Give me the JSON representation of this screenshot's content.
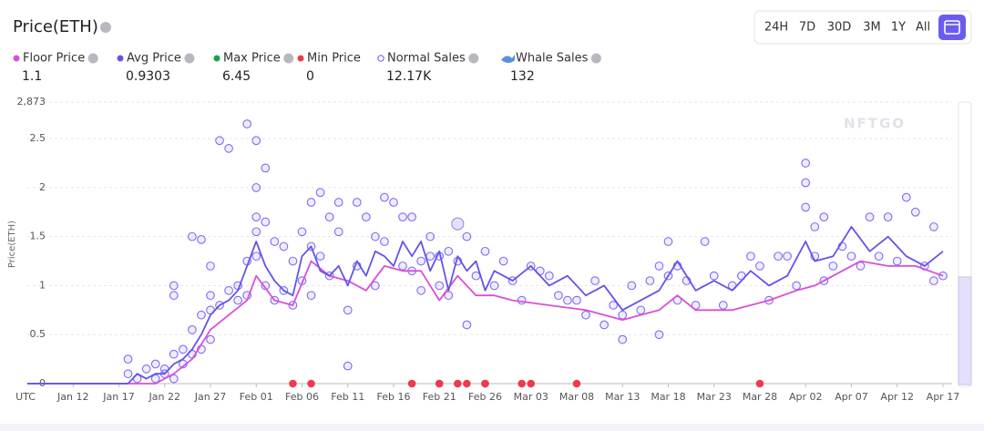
{
  "header": {
    "title": "Price(ETH)",
    "ranges": [
      "24H",
      "7D",
      "30D",
      "3M",
      "1Y",
      "All"
    ]
  },
  "stats": [
    {
      "name": "Floor Price",
      "color": "#d94fd8",
      "value": "1.1"
    },
    {
      "name": "Avg Price",
      "color": "#6354e8",
      "value": "0.9303"
    },
    {
      "name": "Max Price",
      "color": "#16a34a",
      "value": "6.45"
    },
    {
      "name": "Min Price",
      "color": "#f0394a",
      "value": "0"
    },
    {
      "name": "Normal Sales",
      "color": "#7b6cf6",
      "value": "12.17K"
    },
    {
      "name": "Whale Sales",
      "color": "#5b8fd9",
      "value": "132"
    }
  ],
  "chart_data": {
    "type": "line",
    "watermark": "NFTGO",
    "y_label": "Price(ETH)",
    "timezone": "UTC",
    "xlim": [
      "Jan 7",
      "Apr 18"
    ],
    "xticks": [
      "Jan 12",
      "Jan 17",
      "Jan 22",
      "Jan 27",
      "Feb 01",
      "Feb 06",
      "Feb 11",
      "Feb 16",
      "Feb 21",
      "Feb 26",
      "Mar 03",
      "Mar 08",
      "Mar 13",
      "Mar 18",
      "Mar 23",
      "Mar 28",
      "Apr 02",
      "Apr 07",
      "Apr 12",
      "Apr 17"
    ],
    "ylim": [
      0,
      2.873
    ],
    "yticks": [
      0,
      0.5,
      1,
      1.5,
      2,
      2.5,
      {
        "value": 2.873,
        "label": "2,873"
      }
    ],
    "grid": true,
    "series": [
      {
        "kind": "scatter",
        "color": "#7b6cf6",
        "x": [
          "Jan 18",
          "Jan 18",
          "Jan 19",
          "Jan 20",
          "Jan 21",
          "Jan 21",
          "Jan 22",
          "Jan 22",
          "Jan 23",
          "Jan 23",
          "Jan 23",
          "Jan 23",
          "Jan 24",
          "Jan 24",
          "Jan 25",
          "Jan 25",
          "Jan 25",
          "Jan 26",
          "Jan 26",
          "Jan 26",
          "Jan 27",
          "Jan 27",
          "Jan 27",
          "Jan 27",
          "Jan 28",
          "Jan 28",
          "Jan 29",
          "Jan 29",
          "Jan 30",
          "Jan 30",
          "Jan 31",
          "Jan 31",
          "Jan 31",
          "Feb 1",
          "Feb 1",
          "Feb 1",
          "Feb 1",
          "Feb 1",
          "Feb 2",
          "Feb 2",
          "Feb 2",
          "Feb 3",
          "Feb 3",
          "Feb 4",
          "Feb 4",
          "Feb 5",
          "Feb 5",
          "Feb 6",
          "Feb 6",
          "Feb 7",
          "Feb 7",
          "Feb 7",
          "Feb 8",
          "Feb 8",
          "Feb 9",
          "Feb 9",
          "Feb 10",
          "Feb 10",
          "Feb 11",
          "Feb 11",
          "Feb 12",
          "Feb 12",
          "Feb 13",
          "Feb 14",
          "Feb 14",
          "Feb 15",
          "Feb 15",
          "Feb 16",
          "Feb 17",
          "Feb 17",
          "Feb 18",
          "Feb 18",
          "Feb 19",
          "Feb 19",
          "Feb 20",
          "Feb 20",
          "Feb 21",
          "Feb 21",
          "Feb 22",
          "Feb 22",
          "Feb 23",
          "Feb 24",
          "Feb 24",
          "Feb 25",
          "Feb 26",
          "Feb 27",
          "Feb 28",
          "Mar 1",
          "Mar 2",
          "Mar 3",
          "Mar 4",
          "Mar 5",
          "Mar 6",
          "Mar 7",
          "Mar 8",
          "Mar 9",
          "Mar 10",
          "Mar 11",
          "Mar 12",
          "Mar 13",
          "Mar 13",
          "Mar 14",
          "Mar 15",
          "Mar 16",
          "Mar 17",
          "Mar 17",
          "Mar 18",
          "Mar 18",
          "Mar 19",
          "Mar 19",
          "Mar 20",
          "Mar 21",
          "Mar 22",
          "Mar 23",
          "Mar 24",
          "Mar 25",
          "Mar 26",
          "Mar 27",
          "Mar 28",
          "Mar 29",
          "Mar 30",
          "Mar 31",
          "Apr 1",
          "Apr 2",
          "Apr 2",
          "Apr 2",
          "Apr 3",
          "Apr 3",
          "Apr 4",
          "Apr 4",
          "Apr 5",
          "Apr 6",
          "Apr 7",
          "Apr 8",
          "Apr 9",
          "Apr 10",
          "Apr 11",
          "Apr 12",
          "Apr 13",
          "Apr 14",
          "Apr 15",
          "Apr 16",
          "Apr 16",
          "Apr 17"
        ],
        "values": [
          0.25,
          0.1,
          0.05,
          0.15,
          0.05,
          0.2,
          0.1,
          0.15,
          0.05,
          0.3,
          1.0,
          0.9,
          0.2,
          0.35,
          0.3,
          0.55,
          1.5,
          0.35,
          1.47,
          0.7,
          0.45,
          0.9,
          1.2,
          0.75,
          2.48,
          0.8,
          2.4,
          0.95,
          0.85,
          1.0,
          2.65,
          1.25,
          0.9,
          2.48,
          2.0,
          1.7,
          1.55,
          1.3,
          2.2,
          1.65,
          1.0,
          1.45,
          0.85,
          1.4,
          0.95,
          1.25,
          0.8,
          1.05,
          1.55,
          1.85,
          1.4,
          0.9,
          1.95,
          1.3,
          1.7,
          1.1,
          1.55,
          1.85,
          0.75,
          0.18,
          1.2,
          1.85,
          1.7,
          1.5,
          1.0,
          1.9,
          1.45,
          1.85,
          1.7,
          1.2,
          1.7,
          1.15,
          1.25,
          0.95,
          1.5,
          1.3,
          1.0,
          1.3,
          1.35,
          0.9,
          1.25,
          1.5,
          0.6,
          1.1,
          1.35,
          1.0,
          1.25,
          1.05,
          0.85,
          1.2,
          1.15,
          1.1,
          0.9,
          0.85,
          0.85,
          0.7,
          1.05,
          0.6,
          0.8,
          0.45,
          0.7,
          1.0,
          0.75,
          1.05,
          1.2,
          0.5,
          1.45,
          1.1,
          1.2,
          0.85,
          1.05,
          0.8,
          1.45,
          1.1,
          0.8,
          1.0,
          1.1,
          1.3,
          1.2,
          0.85,
          1.3,
          1.3,
          1.0,
          1.8,
          2.25,
          2.05,
          1.6,
          1.3,
          1.7,
          1.05,
          1.2,
          1.4,
          1.3,
          1.2,
          1.7,
          1.3,
          1.7,
          1.25,
          1.9,
          1.75,
          1.2,
          1.6,
          1.05,
          1.1
        ]
      },
      {
        "kind": "line",
        "color": "#d94fd8",
        "x": [
          "Jan 7",
          "Jan 21",
          "Jan 23",
          "Jan 25",
          "Jan 27",
          "Jan 29",
          "Jan 31",
          "Feb 1",
          "Feb 3",
          "Feb 5",
          "Feb 7",
          "Feb 9",
          "Feb 11",
          "Feb 13",
          "Feb 15",
          "Feb 17",
          "Feb 19",
          "Feb 21",
          "Feb 23",
          "Feb 25",
          "Feb 27",
          "Mar 1",
          "Mar 5",
          "Mar 9",
          "Mar 13",
          "Mar 17",
          "Mar 19",
          "Mar 21",
          "Mar 25",
          "Mar 29",
          "Apr 1",
          "Apr 3",
          "Apr 5",
          "Apr 8",
          "Apr 11",
          "Apr 14",
          "Apr 17"
        ],
        "values": [
          0,
          0,
          0.1,
          0.25,
          0.55,
          0.7,
          0.85,
          1.1,
          0.85,
          0.8,
          1.25,
          1.1,
          1.05,
          0.95,
          1.2,
          1.15,
          1.15,
          0.85,
          1.1,
          0.9,
          0.9,
          0.85,
          0.8,
          0.75,
          0.65,
          0.75,
          0.9,
          0.75,
          0.75,
          0.85,
          0.95,
          1.0,
          1.1,
          1.25,
          1.2,
          1.2,
          1.1
        ]
      },
      {
        "kind": "line",
        "color": "#6354e8",
        "x": [
          "Jan 7",
          "Jan 18",
          "Jan 19",
          "Jan 20",
          "Jan 21",
          "Jan 22",
          "Jan 23",
          "Jan 24",
          "Jan 25",
          "Jan 26",
          "Jan 27",
          "Jan 28",
          "Jan 29",
          "Jan 30",
          "Jan 31",
          "Feb 1",
          "Feb 2",
          "Feb 3",
          "Feb 4",
          "Feb 5",
          "Feb 6",
          "Feb 7",
          "Feb 8",
          "Feb 9",
          "Feb 10",
          "Feb 11",
          "Feb 12",
          "Feb 13",
          "Feb 14",
          "Feb 15",
          "Feb 16",
          "Feb 17",
          "Feb 18",
          "Feb 19",
          "Feb 20",
          "Feb 21",
          "Feb 22",
          "Feb 23",
          "Feb 24",
          "Feb 25",
          "Feb 26",
          "Feb 27",
          "Mar 1",
          "Mar 3",
          "Mar 5",
          "Mar 7",
          "Mar 9",
          "Mar 11",
          "Mar 13",
          "Mar 15",
          "Mar 17",
          "Mar 19",
          "Mar 21",
          "Mar 23",
          "Mar 25",
          "Mar 27",
          "Mar 29",
          "Mar 31",
          "Apr 2",
          "Apr 3",
          "Apr 5",
          "Apr 7",
          "Apr 9",
          "Apr 11",
          "Apr 13",
          "Apr 15",
          "Apr 17"
        ],
        "values": [
          0,
          0,
          0.1,
          0.05,
          0.1,
          0.1,
          0.2,
          0.25,
          0.35,
          0.5,
          0.7,
          0.8,
          0.85,
          0.95,
          1.2,
          1.45,
          1.2,
          1.05,
          0.95,
          0.9,
          1.3,
          1.4,
          1.15,
          1.1,
          1.2,
          1.0,
          1.25,
          1.1,
          1.35,
          1.3,
          1.2,
          1.45,
          1.3,
          1.45,
          1.15,
          1.35,
          0.95,
          1.3,
          1.15,
          1.25,
          0.95,
          1.15,
          1.05,
          1.2,
          1.0,
          1.1,
          0.9,
          1.0,
          0.75,
          0.85,
          0.95,
          1.25,
          0.95,
          1.05,
          0.95,
          1.15,
          1.0,
          1.1,
          1.45,
          1.25,
          1.3,
          1.6,
          1.35,
          1.5,
          1.3,
          1.2,
          1.35
        ]
      },
      {
        "kind": "dots",
        "color": "#f0394a",
        "x": [
          "Feb 5",
          "Feb 7",
          "Feb 18",
          "Feb 21",
          "Feb 21",
          "Feb 23",
          "Feb 24",
          "Feb 26",
          "Feb 26",
          "Mar 2",
          "Mar 3",
          "Mar 8",
          "Mar 28"
        ],
        "values": [
          0,
          0,
          0,
          0,
          0,
          0,
          0,
          0,
          0,
          0,
          0,
          0,
          0
        ]
      },
      {
        "kind": "whale",
        "color": "#9b8cf0",
        "x": [
          "Feb 23"
        ],
        "values": [
          1.63
        ]
      }
    ]
  }
}
